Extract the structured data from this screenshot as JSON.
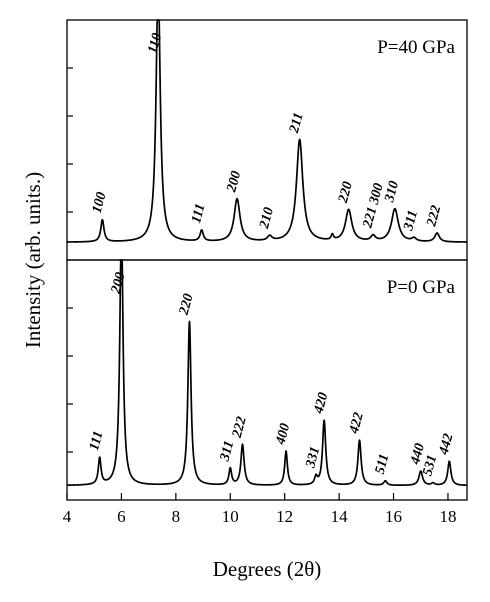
{
  "chart_data": {
    "type": "line",
    "xlabel": "Degrees (2θ)",
    "ylabel": "Intensity (arb. units.)",
    "xlim": [
      4,
      18.7
    ],
    "x_ticks": [
      4,
      6,
      8,
      10,
      12,
      14,
      16,
      18
    ],
    "grid": false,
    "panels": [
      {
        "label": "P=40 GPa",
        "ylim": [
          0,
          10
        ],
        "baseline": 0.35,
        "peaks": [
          {
            "hkl": "100",
            "x": 5.3,
            "height": 1.0,
            "width": 0.07
          },
          {
            "hkl": "110",
            "x": 7.35,
            "height": 12.0,
            "width": 0.09
          },
          {
            "hkl": "111",
            "x": 8.95,
            "height": 0.5,
            "width": 0.07
          },
          {
            "hkl": "200",
            "x": 10.25,
            "height": 1.95,
            "width": 0.13
          },
          {
            "hkl": "210",
            "x": 11.45,
            "height": 0.22,
            "width": 0.1
          },
          {
            "hkl": "211",
            "x": 12.55,
            "height": 4.65,
            "width": 0.14
          },
          {
            "hkl": "",
            "x": 13.75,
            "height": 0.25,
            "width": 0.05
          },
          {
            "hkl": "220",
            "x": 14.35,
            "height": 1.45,
            "width": 0.14
          },
          {
            "hkl": "221 300",
            "x": 15.25,
            "height": 0.25,
            "width": 0.1
          },
          {
            "hkl": "310",
            "x": 16.05,
            "height": 1.5,
            "width": 0.15
          },
          {
            "hkl": "311",
            "x": 16.75,
            "height": 0.15,
            "width": 0.1
          },
          {
            "hkl": "222",
            "x": 17.6,
            "height": 0.4,
            "width": 0.1
          }
        ]
      },
      {
        "label": "P=0 GPa",
        "ylim": [
          0,
          10
        ],
        "baseline": 0.2,
        "peaks": [
          {
            "hkl": "111",
            "x": 5.2,
            "height": 1.2,
            "width": 0.06
          },
          {
            "hkl": "200",
            "x": 6.0,
            "height": 12.0,
            "width": 0.07
          },
          {
            "hkl": "220",
            "x": 8.5,
            "height": 7.45,
            "width": 0.07
          },
          {
            "hkl": "311",
            "x": 10.0,
            "height": 0.75,
            "width": 0.06
          },
          {
            "hkl": "222",
            "x": 10.45,
            "height": 1.85,
            "width": 0.07
          },
          {
            "hkl": "400",
            "x": 12.05,
            "height": 1.55,
            "width": 0.06
          },
          {
            "hkl": "331",
            "x": 13.15,
            "height": 0.35,
            "width": 0.06
          },
          {
            "hkl": "420",
            "x": 13.45,
            "height": 2.95,
            "width": 0.07
          },
          {
            "hkl": "422",
            "x": 14.75,
            "height": 2.05,
            "width": 0.07
          },
          {
            "hkl": "511",
            "x": 15.7,
            "height": 0.2,
            "width": 0.07
          },
          {
            "hkl": "440",
            "x": 17.0,
            "height": 0.65,
            "width": 0.08
          },
          {
            "hkl": "531",
            "x": 17.45,
            "height": 0.1,
            "width": 0.07
          },
          {
            "hkl": "442",
            "x": 18.05,
            "height": 1.1,
            "width": 0.07
          }
        ]
      }
    ]
  }
}
